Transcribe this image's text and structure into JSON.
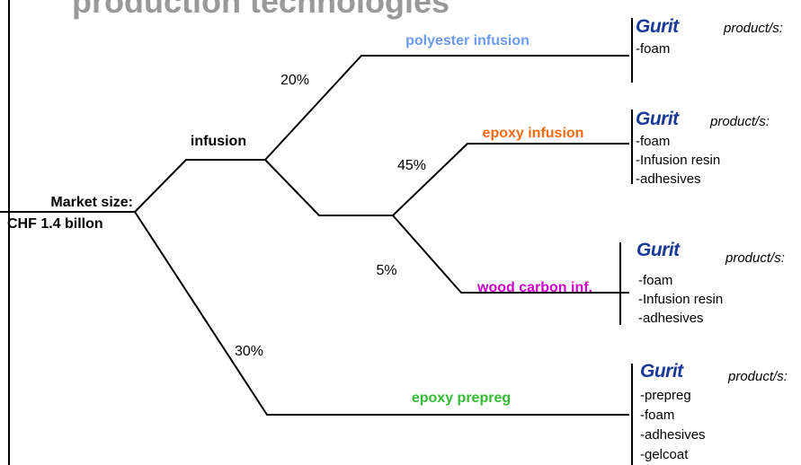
{
  "title": "production technologies",
  "root": {
    "label": [
      "Market size:",
      "CHF 1.4 billon"
    ]
  },
  "nodes": [
    {
      "label": "infusion"
    },
    {
      "label": "polyester infusion"
    },
    {
      "label": "epoxy infusion"
    },
    {
      "label": "wood carbon inf."
    },
    {
      "label": "epoxy prepreg"
    }
  ],
  "shares": [
    "20%",
    "45%",
    "5%",
    "30%"
  ],
  "products": [
    {
      "brand": "Gurit",
      "heading": "product/s:",
      "items": [
        "-foam"
      ]
    },
    {
      "brand": "Gurit",
      "heading": "product/s:",
      "items": [
        "-foam",
        "-Infusion resin",
        "-adhesives"
      ]
    },
    {
      "brand": "Gurit",
      "heading": "product/s:",
      "items": [
        "-foam",
        "-Infusion resin",
        "-adhesives"
      ]
    },
    {
      "brand": "Gurit",
      "heading": "product/s:",
      "items": [
        "-prepreg",
        "-foam",
        "-adhesives",
        "-gelcoat"
      ]
    }
  ]
}
